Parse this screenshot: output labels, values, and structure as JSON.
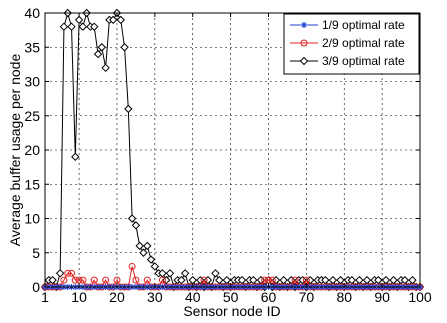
{
  "chart_data": {
    "type": "line",
    "title": "",
    "xlabel": "Sensor node ID",
    "ylabel": "Average buffer usage per node",
    "xlim": [
      1,
      100
    ],
    "ylim": [
      0,
      40
    ],
    "xticks": [
      1,
      10,
      20,
      30,
      40,
      50,
      60,
      70,
      80,
      90,
      100
    ],
    "yticks": [
      0,
      5,
      10,
      15,
      20,
      25,
      30,
      35,
      40
    ],
    "grid": true,
    "legend_position": "top-right",
    "x": [
      1,
      2,
      3,
      4,
      5,
      6,
      7,
      8,
      9,
      10,
      11,
      12,
      13,
      14,
      15,
      16,
      17,
      18,
      19,
      20,
      21,
      22,
      23,
      24,
      25,
      26,
      27,
      28,
      29,
      30,
      31,
      32,
      33,
      34,
      35,
      36,
      37,
      38,
      39,
      40,
      41,
      42,
      43,
      44,
      45,
      46,
      47,
      48,
      49,
      50,
      51,
      52,
      53,
      54,
      55,
      56,
      57,
      58,
      59,
      60,
      61,
      62,
      63,
      64,
      65,
      66,
      67,
      68,
      69,
      70,
      71,
      72,
      73,
      74,
      75,
      76,
      77,
      78,
      79,
      80,
      81,
      82,
      83,
      84,
      85,
      86,
      87,
      88,
      89,
      90,
      91,
      92,
      93,
      94,
      95,
      96,
      97,
      98,
      99,
      100
    ],
    "series": [
      {
        "name": "1/9 optimal rate",
        "color": "#1f3fd6",
        "marker": "asterisk",
        "values": [
          0,
          0,
          0,
          0,
          0,
          0,
          0,
          0,
          0,
          0,
          0,
          0,
          0,
          0,
          0,
          0,
          0,
          0,
          0,
          0,
          0,
          0,
          0,
          0,
          0,
          0,
          0,
          0,
          0,
          0,
          0,
          0,
          0,
          0,
          0,
          0,
          0,
          0,
          0,
          0,
          0,
          0,
          0,
          0,
          0,
          0,
          0,
          0,
          0,
          0,
          0,
          0,
          0,
          0,
          0,
          0,
          0,
          0,
          0,
          0,
          0,
          0,
          0,
          0,
          0,
          0,
          0,
          0,
          0,
          0,
          0,
          0,
          0,
          0,
          0,
          0,
          0,
          0,
          0,
          0,
          0,
          0,
          0,
          0,
          0,
          0,
          0,
          0,
          0,
          0,
          0,
          0,
          0,
          0,
          0,
          0,
          0,
          0,
          0,
          0
        ]
      },
      {
        "name": "2/9 optimal rate",
        "color": "#e02020",
        "marker": "circle",
        "values": [
          0,
          0,
          0,
          0,
          0,
          1,
          2,
          2,
          1,
          1,
          1,
          0,
          0,
          1,
          0,
          0,
          1,
          0,
          0,
          1,
          0,
          0,
          0,
          3,
          1,
          0,
          0,
          1,
          0,
          0,
          0,
          1,
          0,
          0,
          0,
          0,
          0,
          0,
          0,
          0,
          0,
          0,
          1,
          0,
          0,
          0,
          0,
          0,
          0,
          0,
          0,
          0,
          0,
          0,
          0,
          0,
          0,
          0,
          1,
          1,
          1,
          0,
          0,
          0,
          0,
          0,
          1,
          0,
          0,
          1,
          0,
          0,
          0,
          0,
          0,
          0,
          0,
          0,
          0,
          0,
          0,
          0,
          0,
          0,
          0,
          0,
          0,
          0,
          0,
          0,
          0,
          0,
          0,
          0,
          0,
          0,
          0,
          0,
          0,
          0
        ]
      },
      {
        "name": "3/9 optimal rate",
        "color": "#000000",
        "marker": "diamond",
        "values": [
          0,
          1,
          1,
          0,
          2,
          38,
          40,
          38,
          19,
          39,
          38,
          40,
          38,
          38,
          34,
          35,
          32,
          39,
          39,
          40,
          39,
          35,
          26,
          10,
          9,
          6,
          5,
          6,
          4,
          3,
          2,
          2,
          1,
          2,
          0,
          1,
          1,
          2,
          0,
          1,
          0,
          1,
          0,
          1,
          0,
          2,
          1,
          0,
          1,
          0,
          1,
          1,
          1,
          0,
          1,
          1,
          0,
          1,
          0,
          1,
          0,
          1,
          0,
          1,
          0,
          1,
          0,
          1,
          1,
          0,
          1,
          0,
          1,
          1,
          1,
          0,
          1,
          0,
          1,
          0,
          1,
          1,
          0,
          1,
          0,
          1,
          0,
          1,
          1,
          0,
          1,
          0,
          1,
          0,
          1,
          1,
          0,
          1,
          0,
          0
        ]
      }
    ]
  }
}
